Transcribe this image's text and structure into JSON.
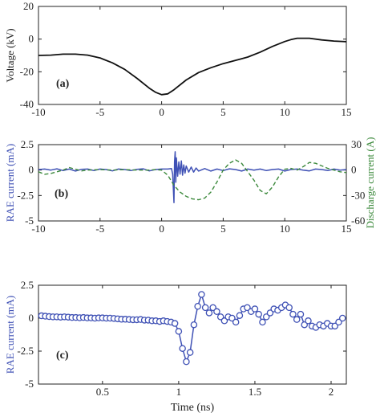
{
  "chart_data": [
    {
      "type": "line",
      "panel_label": "(a)",
      "ylabel": "Voltage (kV)",
      "xlim": [
        -10,
        15
      ],
      "ylim": [
        -40,
        20
      ],
      "xticks": [
        "-10",
        "-5",
        "0",
        "5",
        "10",
        "15"
      ],
      "yticks": [
        "-40",
        "-20",
        "0",
        "20"
      ],
      "series": [
        {
          "color": "#111111",
          "style": "solid",
          "x": [
            -10,
            -9,
            -8,
            -7,
            -6,
            -5,
            -4,
            -3,
            -2,
            -1,
            -0.5,
            0,
            0.5,
            1,
            2,
            3,
            4,
            5,
            6,
            6.5,
            7,
            8,
            9,
            10,
            10.5,
            11,
            12,
            13,
            14,
            15
          ],
          "y": [
            -10,
            -9.8,
            -9.2,
            -9.2,
            -9.8,
            -11.5,
            -14.5,
            -18.5,
            -24,
            -30,
            -32.5,
            -34,
            -33.5,
            -31,
            -25,
            -20.5,
            -17.5,
            -15,
            -13,
            -12,
            -11,
            -8,
            -4.5,
            -1.5,
            -0.3,
            0.5,
            0.5,
            -0.5,
            -1.2,
            -1.6
          ]
        }
      ]
    },
    {
      "type": "line",
      "panel_label": "(b)",
      "ylabel": "RAE current (mA)",
      "ylabel_right": "Discharge current (A)",
      "xlim": [
        -10,
        15
      ],
      "ylim": [
        -5,
        2.5
      ],
      "ylim_right": [
        -60,
        30
      ],
      "xticks": [
        "-10",
        "-5",
        "0",
        "5",
        "10",
        "15"
      ],
      "yticks": [
        "-5",
        "-2.5",
        "0",
        "2.5"
      ],
      "yticks_right": [
        "-60",
        "-30",
        "0",
        "30"
      ],
      "series": [
        {
          "color": "#3f51b5",
          "style": "solid",
          "axis": "left",
          "x": [
            -10,
            -9.5,
            -9,
            -8.5,
            -8,
            -7.5,
            -7,
            -6.5,
            -6,
            -5.5,
            -5,
            -4.5,
            -4,
            -3.5,
            -3,
            -2.5,
            -2,
            -1.5,
            -1,
            -0.5,
            0,
            0.5,
            0.8,
            0.9,
            1.0,
            1.05,
            1.1,
            1.15,
            1.2,
            1.3,
            1.4,
            1.5,
            1.6,
            1.7,
            1.8,
            1.9,
            2.0,
            2.2,
            2.4,
            2.6,
            2.8,
            3.0,
            3.5,
            4,
            4.5,
            5,
            5.5,
            6,
            6.5,
            7,
            7.5,
            8,
            8.5,
            9,
            9.5,
            10,
            10.5,
            11,
            11.5,
            12,
            12.5,
            13,
            13.5,
            14,
            14.5,
            15
          ],
          "y": [
            0.05,
            0.1,
            0.0,
            0.12,
            -0.05,
            0.1,
            -0.1,
            0.08,
            0.1,
            -0.05,
            0.1,
            0.05,
            -0.08,
            0.1,
            0.05,
            -0.05,
            0.08,
            0.12,
            -0.08,
            0.05,
            0.1,
            0.1,
            0.15,
            -0.4,
            -3.2,
            0.8,
            1.8,
            -1.2,
            1.2,
            -0.6,
            0.8,
            -0.4,
            0.9,
            -0.5,
            0.5,
            -0.3,
            0.4,
            -0.2,
            0.3,
            -0.2,
            0.2,
            -0.1,
            0.15,
            -0.1,
            0.1,
            -0.05,
            0.12,
            0.05,
            -0.1,
            0.1,
            0.0,
            0.1,
            -0.05,
            0.05,
            0.1,
            -0.1,
            0.05,
            0.1,
            0.0,
            -0.08,
            0.1,
            0.05,
            -0.05,
            0.1,
            0.0,
            0.05
          ]
        },
        {
          "color": "#3d8a3d",
          "style": "dashed",
          "axis": "right",
          "x": [
            -10,
            -9.5,
            -9,
            -8,
            -7.5,
            -7,
            -6.5,
            -6,
            -5,
            -4,
            -3,
            -2,
            -1,
            -0.5,
            0,
            0.5,
            1,
            1.5,
            2,
            2.5,
            3,
            3.5,
            4,
            4.5,
            5,
            5.5,
            6,
            6.5,
            7,
            7.5,
            8,
            8.5,
            9,
            9.5,
            10,
            10.5,
            11,
            11.5,
            12,
            12.5,
            13,
            13.5,
            14,
            14.5,
            15
          ],
          "y": [
            -2,
            -5,
            -4,
            0,
            3,
            1,
            -1,
            0,
            0.5,
            0,
            0.5,
            0,
            0,
            0.5,
            0,
            -6,
            -18,
            -26,
            -31,
            -34,
            -35,
            -33,
            -26,
            -14,
            0,
            8,
            12,
            8,
            -2,
            -12,
            -24,
            -28,
            -20,
            -8,
            1,
            2,
            0,
            4,
            9,
            8,
            5,
            2,
            0,
            -2,
            -3
          ]
        }
      ]
    },
    {
      "type": "line",
      "panel_label": "(c)",
      "xlabel": "Time (ns)",
      "ylabel": "RAE current (mA)",
      "xlim": [
        0.08,
        2.1
      ],
      "ylim": [
        -5,
        2.5
      ],
      "xticks": [
        "0.5",
        "1",
        "1.5",
        "2"
      ],
      "yticks": [
        "-5",
        "-2.5",
        "0",
        "2.5"
      ],
      "series": [
        {
          "color": "#3f51b5",
          "style": "solid-markers",
          "axis": "left",
          "x": [
            0.1,
            0.125,
            0.15,
            0.175,
            0.2,
            0.225,
            0.25,
            0.275,
            0.3,
            0.325,
            0.35,
            0.375,
            0.4,
            0.425,
            0.45,
            0.475,
            0.5,
            0.525,
            0.55,
            0.575,
            0.6,
            0.625,
            0.65,
            0.675,
            0.7,
            0.725,
            0.75,
            0.775,
            0.8,
            0.825,
            0.85,
            0.875,
            0.9,
            0.925,
            0.95,
            0.975,
            1.0,
            1.025,
            1.05,
            1.075,
            1.1,
            1.125,
            1.15,
            1.175,
            1.2,
            1.225,
            1.25,
            1.275,
            1.3,
            1.325,
            1.35,
            1.375,
            1.4,
            1.425,
            1.45,
            1.475,
            1.5,
            1.525,
            1.55,
            1.575,
            1.6,
            1.625,
            1.65,
            1.675,
            1.7,
            1.725,
            1.75,
            1.775,
            1.8,
            1.825,
            1.85,
            1.875,
            1.9,
            1.925,
            1.95,
            1.975,
            2.0,
            2.025,
            2.05,
            2.075
          ],
          "y": [
            0.18,
            0.15,
            0.12,
            0.1,
            0.1,
            0.08,
            0.1,
            0.08,
            0.05,
            0.05,
            0.03,
            0.05,
            0.02,
            0.02,
            0.0,
            0.02,
            0.02,
            0.0,
            0.0,
            -0.02,
            -0.05,
            -0.08,
            -0.08,
            -0.1,
            -0.12,
            -0.12,
            -0.1,
            -0.15,
            -0.15,
            -0.2,
            -0.2,
            -0.25,
            -0.2,
            -0.25,
            -0.3,
            -0.4,
            -1.0,
            -2.3,
            -3.3,
            -2.6,
            -0.5,
            0.9,
            1.8,
            0.8,
            0.4,
            0.8,
            0.5,
            0.1,
            -0.2,
            0.1,
            0.0,
            -0.3,
            0.2,
            0.7,
            0.8,
            0.5,
            0.7,
            0.3,
            -0.3,
            0.1,
            0.4,
            0.7,
            0.6,
            0.8,
            1.0,
            0.8,
            0.3,
            -0.1,
            0.3,
            -0.5,
            -0.2,
            -0.6,
            -0.7,
            -0.5,
            -0.6,
            -0.4,
            -0.6,
            -0.6,
            -0.3,
            0.0
          ]
        }
      ]
    }
  ]
}
